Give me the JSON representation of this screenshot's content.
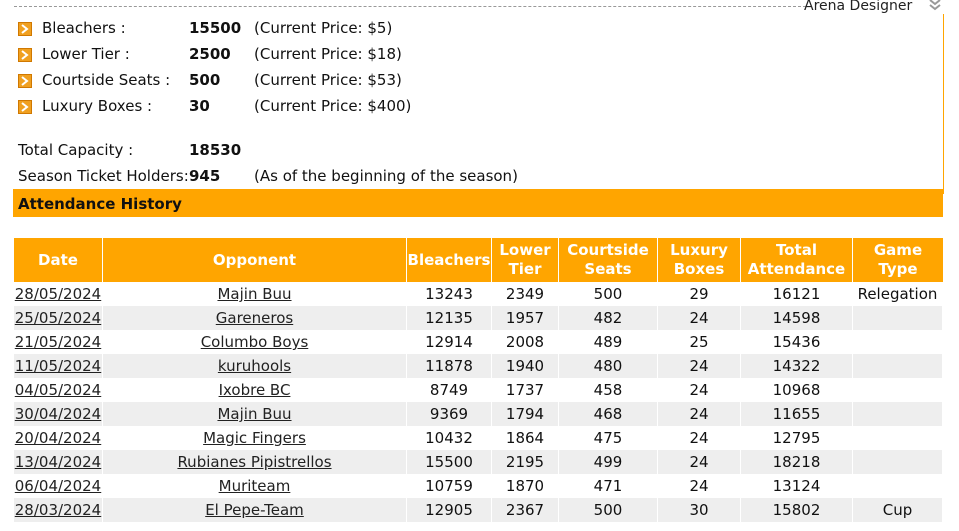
{
  "header": {
    "title": "Arena Designer"
  },
  "seats": [
    {
      "label": "Bleachers :",
      "count": "15500",
      "price": "(Current Price: $5)"
    },
    {
      "label": "Lower Tier :",
      "count": "2500",
      "price": "(Current Price: $18)"
    },
    {
      "label": "Courtside Seats :",
      "count": "500",
      "price": "(Current Price: $53)"
    },
    {
      "label": "Luxury Boxes :",
      "count": "30",
      "price": "(Current Price: $400)"
    }
  ],
  "totals": {
    "capacity_label": "Total Capacity :",
    "capacity_value": "18530",
    "holders_label": "Season Ticket Holders:",
    "holders_value": "945",
    "holders_note": "(As of the beginning of the season)"
  },
  "history": {
    "title": "Attendance History",
    "columns": [
      "Date",
      "Opponent",
      "Bleachers",
      "Lower Tier",
      "Courtside Seats",
      "Luxury Boxes",
      "Total Attendance",
      "Game Type"
    ],
    "rows": [
      [
        "28/05/2024",
        "Majin Buu",
        "13243",
        "2349",
        "500",
        "29",
        "16121",
        "Relegation"
      ],
      [
        "25/05/2024",
        "Gareneros",
        "12135",
        "1957",
        "482",
        "24",
        "14598",
        ""
      ],
      [
        "21/05/2024",
        "Columbo Boys",
        "12914",
        "2008",
        "489",
        "25",
        "15436",
        ""
      ],
      [
        "11/05/2024",
        "kuruhools",
        "11878",
        "1940",
        "480",
        "24",
        "14322",
        ""
      ],
      [
        "04/05/2024",
        "Ixobre BC",
        "8749",
        "1737",
        "458",
        "24",
        "10968",
        ""
      ],
      [
        "30/04/2024",
        "Majin Buu",
        "9369",
        "1794",
        "468",
        "24",
        "11655",
        ""
      ],
      [
        "20/04/2024",
        "Magic Fingers",
        "10432",
        "1864",
        "475",
        "24",
        "12795",
        ""
      ],
      [
        "13/04/2024",
        "Rubianes Pipistrellos",
        "15500",
        "2195",
        "499",
        "24",
        "18218",
        ""
      ],
      [
        "06/04/2024",
        "Muriteam",
        "10759",
        "1870",
        "471",
        "24",
        "13124",
        ""
      ],
      [
        "28/03/2024",
        "El Pepe-Team",
        "12905",
        "2367",
        "500",
        "30",
        "15802",
        "Cup"
      ]
    ]
  }
}
